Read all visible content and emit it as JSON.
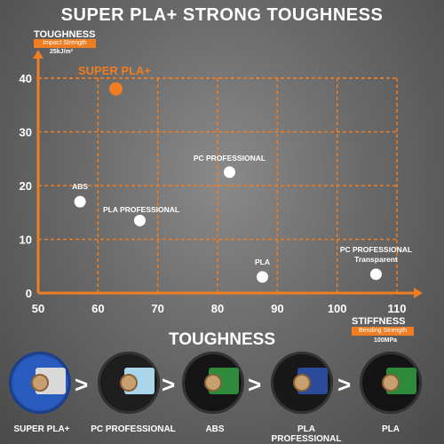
{
  "title": "SUPER PLA+ STRONG TOUGHNESS",
  "y_axis": {
    "label": "TOUGHNESS",
    "sublabel": "Impact Strength",
    "unit": "25kJ/m²"
  },
  "x_axis": {
    "label": "STIFFNESS",
    "sublabel": "Bending Strength",
    "unit": "100MPa"
  },
  "heading": "TOUGHNESS",
  "colors": {
    "accent": "#ef7d22",
    "point": "#ffffff"
  },
  "chart_data": {
    "type": "scatter",
    "title": "SUPER PLA+ STRONG TOUGHNESS",
    "xlabel": "STIFFNESS",
    "ylabel": "TOUGHNESS",
    "xlim": [
      50,
      110
    ],
    "ylim": [
      0,
      40
    ],
    "x_ticks": [
      "50",
      "60",
      "70",
      "80",
      "90",
      "100",
      "110"
    ],
    "y_ticks": [
      "0",
      "10",
      "20",
      "30",
      "40"
    ],
    "grid": true,
    "points": [
      {
        "label": "SUPER PLA+",
        "x": 63,
        "y": 38,
        "highlight": true
      },
      {
        "label": "PC PROFESSIONAL",
        "x": 82,
        "y": 22.5
      },
      {
        "label": "ABS",
        "x": 57,
        "y": 17
      },
      {
        "label": "PLA PROFESSIONAL",
        "x": 67,
        "y": 13.5
      },
      {
        "label": "PLA",
        "x": 87.5,
        "y": 3
      },
      {
        "label": "PC PROFESSIONAL\nTransparent",
        "x": 106.5,
        "y": 3.5
      }
    ]
  },
  "spools": [
    {
      "name": "SUPER PLA+",
      "color": "#2a5bbf",
      "label_color": "#d9d9d9",
      "icon": "blue-spool-icon"
    },
    {
      "name": "PC PROFESSIONAL",
      "color": "#1e1e1e",
      "label_color": "#a9d6ea",
      "icon": "black-spool-icon"
    },
    {
      "name": "ABS",
      "color": "#151515",
      "label_color": "#2f8a3c",
      "icon": "black-spool-icon"
    },
    {
      "name": "PLA PROFESSIONAL",
      "color": "#181818",
      "label_color": "#2a4a9a",
      "icon": "black-spool-icon"
    },
    {
      "name": "PLA",
      "color": "#141414",
      "label_color": "#2d8a3a",
      "icon": "black-spool-icon"
    }
  ]
}
